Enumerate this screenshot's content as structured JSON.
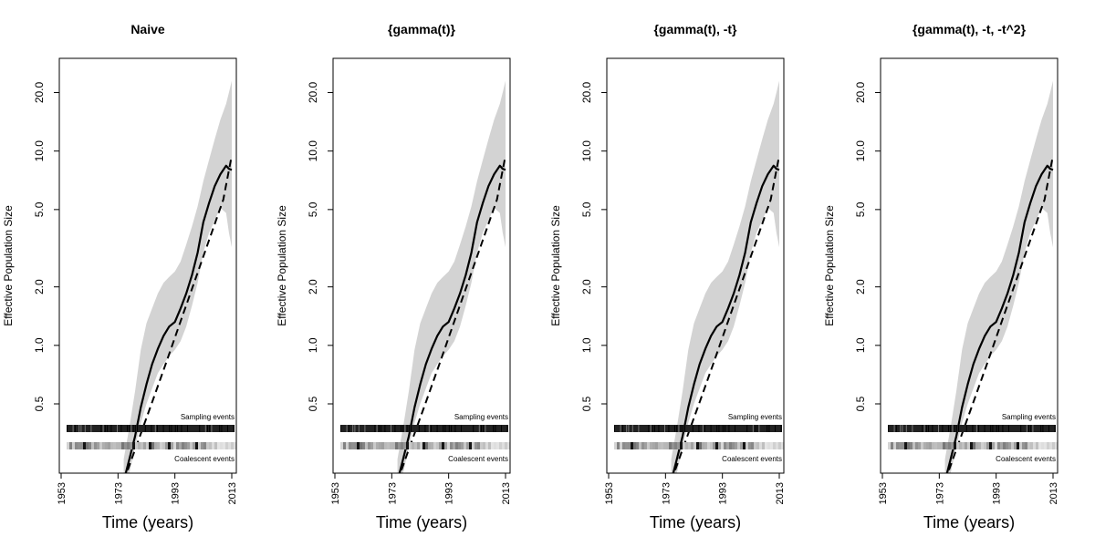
{
  "chart_data": [
    {
      "type": "line",
      "title": "Naive",
      "xlabel": "Time (years)",
      "ylabel": "Effective Population Size",
      "x_ticks": [
        "1953",
        "1973",
        "1993",
        "2013"
      ],
      "y_ticks": [
        "0.5",
        "1.0",
        "2.0",
        "5.0",
        "10.0",
        "20.0"
      ],
      "y_scale": "log",
      "xlim": [
        1953,
        2013
      ],
      "ylim": [
        0.22,
        30
      ],
      "sampling_label": "Sampling events",
      "coalescent_label": "Coalescent events",
      "series": [
        {
          "x": [
            1975,
            1977,
            1979,
            1981,
            1983,
            1985,
            1987,
            1989,
            1991,
            1993,
            1995,
            1997,
            1999,
            2001,
            2003,
            2005,
            2007,
            2009,
            2011,
            2012,
            2013
          ],
          "values": [
            0.2,
            0.26,
            0.34,
            0.48,
            0.63,
            0.8,
            0.96,
            1.12,
            1.25,
            1.32,
            1.55,
            1.85,
            2.3,
            3.0,
            4.3,
            5.4,
            6.6,
            7.6,
            8.4,
            8.1,
            8.0
          ]
        },
        {
          "x": [
            1975,
            1980,
            1985,
            1990,
            1995,
            2000,
            2005,
            2010,
            2013
          ],
          "values": [
            0.2,
            0.32,
            0.51,
            0.82,
            1.33,
            2.15,
            3.48,
            5.62,
            9.5
          ]
        }
      ],
      "band_lower": [
        0.16,
        0.22,
        0.3,
        0.4,
        0.5,
        0.6,
        0.72,
        0.8,
        0.88,
        0.95,
        1.05,
        1.25,
        1.6,
        2.1,
        3.0,
        3.8,
        4.4,
        5.1,
        4.8,
        3.8,
        3.2
      ],
      "band_upper": [
        0.26,
        0.38,
        0.58,
        0.95,
        1.3,
        1.55,
        1.85,
        2.1,
        2.25,
        2.4,
        2.7,
        3.3,
        4.1,
        5.2,
        7.0,
        9.0,
        11.5,
        14.5,
        17.5,
        20.0,
        23.0
      ]
    },
    {
      "type": "line",
      "title": "{gamma(t)}",
      "xlabel": "Time (years)",
      "ylabel": "Effective Population Size",
      "x_ticks": [
        "1953",
        "1973",
        "1993",
        "2013"
      ],
      "y_ticks": [
        "0.5",
        "1.0",
        "2.0",
        "5.0",
        "10.0",
        "20.0"
      ],
      "y_scale": "log",
      "xlim": [
        1953,
        2013
      ],
      "ylim": [
        0.22,
        30
      ],
      "sampling_label": "Sampling events",
      "coalescent_label": "Coalescent events",
      "series": [
        {
          "x": [
            1975,
            1977,
            1979,
            1981,
            1983,
            1985,
            1987,
            1989,
            1991,
            1993,
            1995,
            1997,
            1999,
            2001,
            2003,
            2005,
            2007,
            2009,
            2011,
            2012,
            2013
          ],
          "values": [
            0.2,
            0.26,
            0.34,
            0.48,
            0.63,
            0.8,
            0.96,
            1.12,
            1.25,
            1.32,
            1.55,
            1.85,
            2.3,
            3.0,
            4.3,
            5.4,
            6.6,
            7.6,
            8.4,
            8.1,
            8.0
          ]
        },
        {
          "x": [
            1975,
            1980,
            1985,
            1990,
            1995,
            2000,
            2005,
            2010,
            2013
          ],
          "values": [
            0.2,
            0.32,
            0.51,
            0.82,
            1.33,
            2.15,
            3.48,
            5.62,
            9.5
          ]
        }
      ],
      "band_lower": [
        0.16,
        0.22,
        0.3,
        0.4,
        0.5,
        0.6,
        0.72,
        0.8,
        0.88,
        0.95,
        1.05,
        1.25,
        1.6,
        2.1,
        3.0,
        3.8,
        4.4,
        5.1,
        4.8,
        3.8,
        3.2
      ],
      "band_upper": [
        0.26,
        0.38,
        0.58,
        0.95,
        1.3,
        1.55,
        1.85,
        2.1,
        2.25,
        2.4,
        2.7,
        3.3,
        4.1,
        5.2,
        7.0,
        9.0,
        11.5,
        14.5,
        17.5,
        20.0,
        23.0
      ]
    },
    {
      "type": "line",
      "title": "{gamma(t), -t}",
      "xlabel": "Time (years)",
      "ylabel": "Effective Population Size",
      "x_ticks": [
        "1953",
        "1973",
        "1993",
        "2013"
      ],
      "y_ticks": [
        "0.5",
        "1.0",
        "2.0",
        "5.0",
        "10.0",
        "20.0"
      ],
      "y_scale": "log",
      "xlim": [
        1953,
        2013
      ],
      "ylim": [
        0.22,
        30
      ],
      "sampling_label": "Sampling events",
      "coalescent_label": "Coalescent events",
      "series": [
        {
          "x": [
            1975,
            1977,
            1979,
            1981,
            1983,
            1985,
            1987,
            1989,
            1991,
            1993,
            1995,
            1997,
            1999,
            2001,
            2003,
            2005,
            2007,
            2009,
            2011,
            2012,
            2013
          ],
          "values": [
            0.2,
            0.26,
            0.34,
            0.48,
            0.63,
            0.8,
            0.96,
            1.12,
            1.25,
            1.32,
            1.55,
            1.85,
            2.3,
            3.0,
            4.3,
            5.4,
            6.6,
            7.6,
            8.4,
            8.1,
            8.0
          ]
        },
        {
          "x": [
            1975,
            1980,
            1985,
            1990,
            1995,
            2000,
            2005,
            2010,
            2013
          ],
          "values": [
            0.2,
            0.32,
            0.51,
            0.82,
            1.33,
            2.15,
            3.48,
            5.62,
            9.5
          ]
        }
      ],
      "band_lower": [
        0.16,
        0.22,
        0.3,
        0.4,
        0.5,
        0.6,
        0.72,
        0.8,
        0.88,
        0.95,
        1.05,
        1.25,
        1.6,
        2.1,
        3.0,
        3.8,
        4.4,
        5.1,
        4.8,
        3.8,
        3.2
      ],
      "band_upper": [
        0.26,
        0.38,
        0.58,
        0.95,
        1.3,
        1.55,
        1.85,
        2.1,
        2.25,
        2.4,
        2.7,
        3.3,
        4.1,
        5.2,
        7.0,
        9.0,
        11.5,
        14.5,
        17.5,
        20.0,
        23.0
      ]
    },
    {
      "type": "line",
      "title": "{gamma(t), -t, -t^2}",
      "xlabel": "Time (years)",
      "ylabel": "Effective Population Size",
      "x_ticks": [
        "1953",
        "1973",
        "1993",
        "2013"
      ],
      "y_ticks": [
        "0.5",
        "1.0",
        "2.0",
        "5.0",
        "10.0",
        "20.0"
      ],
      "y_scale": "log",
      "xlim": [
        1953,
        2013
      ],
      "ylim": [
        0.22,
        30
      ],
      "sampling_label": "Sampling events",
      "coalescent_label": "Coalescent events",
      "series": [
        {
          "x": [
            1975,
            1977,
            1979,
            1981,
            1983,
            1985,
            1987,
            1989,
            1991,
            1993,
            1995,
            1997,
            1999,
            2001,
            2003,
            2005,
            2007,
            2009,
            2011,
            2012,
            2013
          ],
          "values": [
            0.2,
            0.26,
            0.34,
            0.48,
            0.63,
            0.8,
            0.96,
            1.12,
            1.25,
            1.32,
            1.55,
            1.85,
            2.3,
            3.0,
            4.3,
            5.4,
            6.6,
            7.6,
            8.4,
            8.1,
            8.0
          ]
        },
        {
          "x": [
            1975,
            1980,
            1985,
            1990,
            1995,
            2000,
            2005,
            2010,
            2013
          ],
          "values": [
            0.2,
            0.32,
            0.51,
            0.82,
            1.33,
            2.15,
            3.48,
            5.62,
            9.5
          ]
        }
      ],
      "band_lower": [
        0.16,
        0.22,
        0.3,
        0.4,
        0.5,
        0.6,
        0.72,
        0.8,
        0.88,
        0.95,
        1.05,
        1.25,
        1.6,
        2.1,
        3.0,
        3.8,
        4.4,
        5.1,
        4.8,
        3.8,
        3.2
      ],
      "band_upper": [
        0.26,
        0.38,
        0.58,
        0.95,
        1.3,
        1.55,
        1.85,
        2.1,
        2.25,
        2.4,
        2.7,
        3.3,
        4.1,
        5.2,
        7.0,
        9.0,
        11.5,
        14.5,
        17.5,
        20.0,
        23.0
      ]
    }
  ]
}
